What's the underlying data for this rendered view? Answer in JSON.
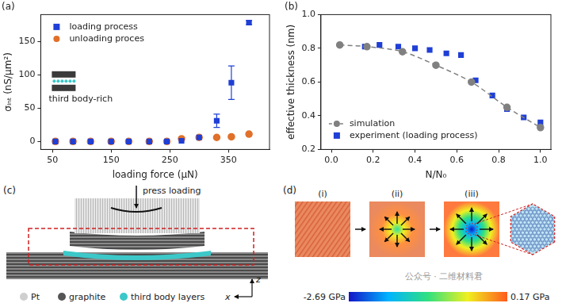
{
  "chart_data": [
    {
      "type": "scatter",
      "title": "(a)",
      "x_label": "loading force (μN)",
      "y_label": "σᵢₙₜ (nS/μm²)",
      "xlim": [
        30,
        420
      ],
      "xticks": [
        50,
        150,
        250,
        350
      ],
      "ylim": [
        -12,
        190
      ],
      "yticks": [
        0,
        50,
        100,
        150
      ],
      "grid": false,
      "legend": "upper left",
      "annotations": [
        "third body-rich"
      ],
      "series": [
        {
          "name": "loading process",
          "color": "#1f3fd6",
          "marker": "square",
          "line_style": "none",
          "x": [
            55,
            85,
            115,
            150,
            180,
            215,
            245,
            270,
            300,
            330,
            355,
            385
          ],
          "values": [
            0,
            0,
            0,
            0,
            0,
            0,
            0,
            1,
            6,
            31,
            88,
            178
          ],
          "error": [
            null,
            null,
            null,
            null,
            null,
            null,
            null,
            null,
            null,
            10,
            25,
            3
          ]
        },
        {
          "name": "unloading proces",
          "color": "#e0702a",
          "marker": "circle",
          "line_style": "none",
          "x": [
            55,
            85,
            115,
            150,
            180,
            215,
            245,
            270,
            300,
            330,
            355,
            385
          ],
          "values": [
            0,
            0,
            0,
            0,
            0,
            0,
            0,
            4,
            6,
            6,
            7,
            11
          ]
        }
      ]
    },
    {
      "type": "scatter",
      "title": "(b)",
      "x_label": "N/N₀",
      "y_label": "effective thickness (nm)",
      "xlim": [
        -0.05,
        1.05
      ],
      "xticks": [
        {
          "value": 0,
          "label": "0.0"
        },
        0.2,
        0.4,
        0.6,
        0.8,
        {
          "value": 1,
          "label": "1.0"
        }
      ],
      "ylim": [
        0.2,
        1.0
      ],
      "yticks": [
        0.2,
        0.4,
        0.6,
        0.8,
        {
          "value": 1,
          "label": "1.0"
        }
      ],
      "grid": false,
      "legend": "lower left",
      "series": [
        {
          "name": "simulation",
          "color": "#808080",
          "marker": "circle",
          "line_style": "dashed",
          "type": "line",
          "x": [
            0.04,
            0.17,
            0.34,
            0.5,
            0.67,
            0.84,
            1.0
          ],
          "values": [
            0.82,
            0.81,
            0.78,
            0.7,
            0.6,
            0.45,
            0.33
          ]
        },
        {
          "name": "experiment (loading process)",
          "color": "#1f3fd6",
          "marker": "square",
          "line_style": "none",
          "x": [
            0.16,
            0.23,
            0.32,
            0.4,
            0.47,
            0.55,
            0.62,
            0.69,
            0.77,
            0.84,
            0.92,
            1.0
          ],
          "values": [
            0.81,
            0.82,
            0.81,
            0.8,
            0.79,
            0.77,
            0.76,
            0.61,
            0.52,
            0.44,
            0.39,
            0.36
          ]
        }
      ]
    }
  ],
  "panels": {
    "c": {
      "label": "(c)",
      "annotation": "press loading",
      "key_items": [
        "Pt",
        "graphite",
        "third body layers"
      ],
      "axes": [
        "z",
        "x"
      ]
    },
    "d": {
      "label": "(d)",
      "stages": [
        "(i)",
        "(ii)",
        "(iii)"
      ],
      "colorbar": {
        "range": [
          -2.69,
          0.17
        ],
        "ticks": [
          {
            "value": -2.69,
            "label": "-2.69 GPa"
          },
          {
            "value": 0.17,
            "label": "0.17 GPa"
          }
        ]
      }
    }
  },
  "watermark": "公众号 · 二维材料君"
}
